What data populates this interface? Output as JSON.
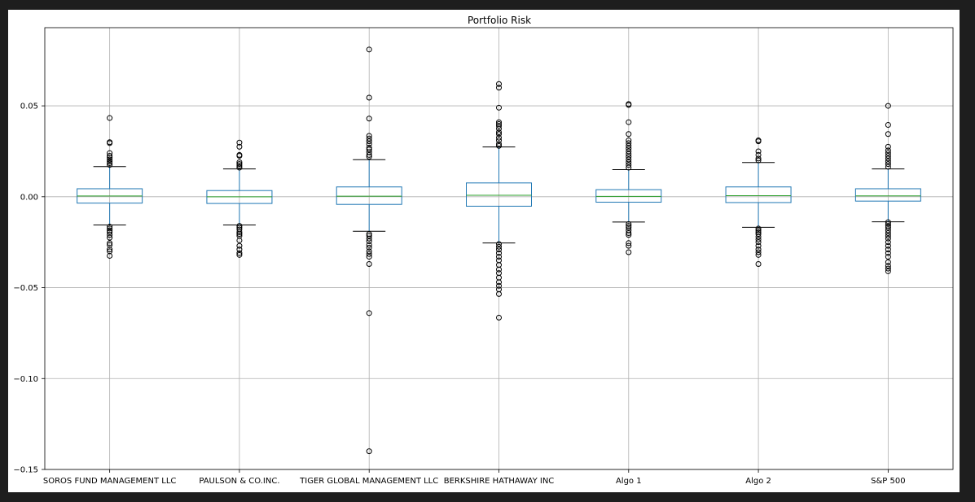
{
  "chart_data": {
    "type": "box",
    "title": "Portfolio Risk",
    "xlabel": "",
    "ylabel": "",
    "ylim": [
      -0.15,
      0.093
    ],
    "yticks": [
      0.05,
      0.0,
      -0.05,
      -0.1,
      -0.15
    ],
    "ytick_labels": [
      "0.05",
      "0.00",
      "−0.05",
      "−0.10",
      "−0.15"
    ],
    "grid": true,
    "box_color": "#1f77b4",
    "median_color": "#2ca02c",
    "whisker_color": "#1f77b4",
    "cap_color": "#000000",
    "series": [
      {
        "name": "SOROS FUND MANAGEMENT LLC",
        "q1": -0.0035,
        "median": 0.0004,
        "q3": 0.0044,
        "whisker_low": -0.0155,
        "whisker_high": 0.0166,
        "outliers": [
          0.0433,
          0.03,
          0.0295,
          0.024,
          0.0225,
          0.0215,
          0.0205,
          0.0195,
          0.0185,
          0.0175,
          -0.0165,
          -0.0175,
          -0.0185,
          -0.0195,
          -0.021,
          -0.0225,
          -0.0255,
          -0.0265,
          -0.029,
          -0.03,
          -0.0325
        ]
      },
      {
        "name": "PAULSON & CO.INC.",
        "q1": -0.0037,
        "median": 0.0,
        "q3": 0.0034,
        "whisker_low": -0.0155,
        "whisker_high": 0.0153,
        "outliers": [
          0.0298,
          0.0275,
          0.023,
          0.0225,
          0.019,
          0.018,
          0.017,
          0.016,
          -0.016,
          -0.017,
          -0.018,
          -0.0195,
          -0.0205,
          -0.0215,
          -0.024,
          -0.027,
          -0.029,
          -0.031,
          -0.032
        ]
      },
      {
        "name": "TIGER GLOBAL MANAGEMENT LLC",
        "q1": -0.0042,
        "median": 0.0003,
        "q3": 0.0054,
        "whisker_low": -0.019,
        "whisker_high": 0.0204,
        "outliers": [
          0.081,
          0.0545,
          0.043,
          0.0335,
          0.032,
          0.0305,
          0.029,
          0.027,
          0.026,
          0.0245,
          0.023,
          0.022,
          -0.0205,
          -0.0215,
          -0.023,
          -0.0245,
          -0.0265,
          -0.028,
          -0.03,
          -0.0315,
          -0.033,
          -0.037,
          -0.064,
          -0.14
        ]
      },
      {
        "name": "BERKSHIRE HATHAWAY INC",
        "q1": -0.0052,
        "median": 0.0008,
        "q3": 0.0076,
        "whisker_low": -0.0254,
        "whisker_high": 0.0274,
        "outliers": [
          0.062,
          0.06,
          0.049,
          0.041,
          0.04,
          0.039,
          0.0375,
          0.0355,
          0.0345,
          0.0325,
          0.031,
          0.029,
          0.028,
          -0.026,
          -0.0275,
          -0.029,
          -0.031,
          -0.033,
          -0.035,
          -0.0375,
          -0.04,
          -0.042,
          -0.0445,
          -0.047,
          -0.049,
          -0.051,
          -0.0535,
          -0.0665
        ]
      },
      {
        "name": "Algo 1",
        "q1": -0.003,
        "median": 0.0002,
        "q3": 0.0039,
        "whisker_low": -0.0139,
        "whisker_high": 0.0149,
        "outliers": [
          0.051,
          0.0505,
          0.041,
          0.0345,
          0.031,
          0.0295,
          0.028,
          0.0265,
          0.025,
          0.0235,
          0.022,
          0.0205,
          0.019,
          0.0175,
          0.016,
          -0.015,
          -0.016,
          -0.017,
          -0.0185,
          -0.02,
          -0.021,
          -0.0255,
          -0.027,
          -0.0305
        ]
      },
      {
        "name": "Algo 2",
        "q1": -0.0032,
        "median": 0.0006,
        "q3": 0.0054,
        "whisker_low": -0.0168,
        "whisker_high": 0.0188,
        "outliers": [
          0.031,
          0.0305,
          0.025,
          0.023,
          0.021,
          0.02,
          -0.0175,
          -0.0185,
          -0.0195,
          -0.0205,
          -0.022,
          -0.0235,
          -0.025,
          -0.027,
          -0.029,
          -0.0305,
          -0.032,
          -0.037
        ]
      },
      {
        "name": "S&P 500",
        "q1": -0.0024,
        "median": 0.0005,
        "q3": 0.0044,
        "whisker_low": -0.0138,
        "whisker_high": 0.0153,
        "outliers": [
          0.05,
          0.0395,
          0.0345,
          0.0275,
          0.0255,
          0.024,
          0.0225,
          0.021,
          0.0195,
          0.018,
          0.0165,
          -0.014,
          -0.015,
          -0.016,
          -0.017,
          -0.0185,
          -0.02,
          -0.0215,
          -0.023,
          -0.025,
          -0.027,
          -0.029,
          -0.031,
          -0.033,
          -0.036,
          -0.038,
          -0.0395,
          -0.041
        ]
      }
    ]
  }
}
